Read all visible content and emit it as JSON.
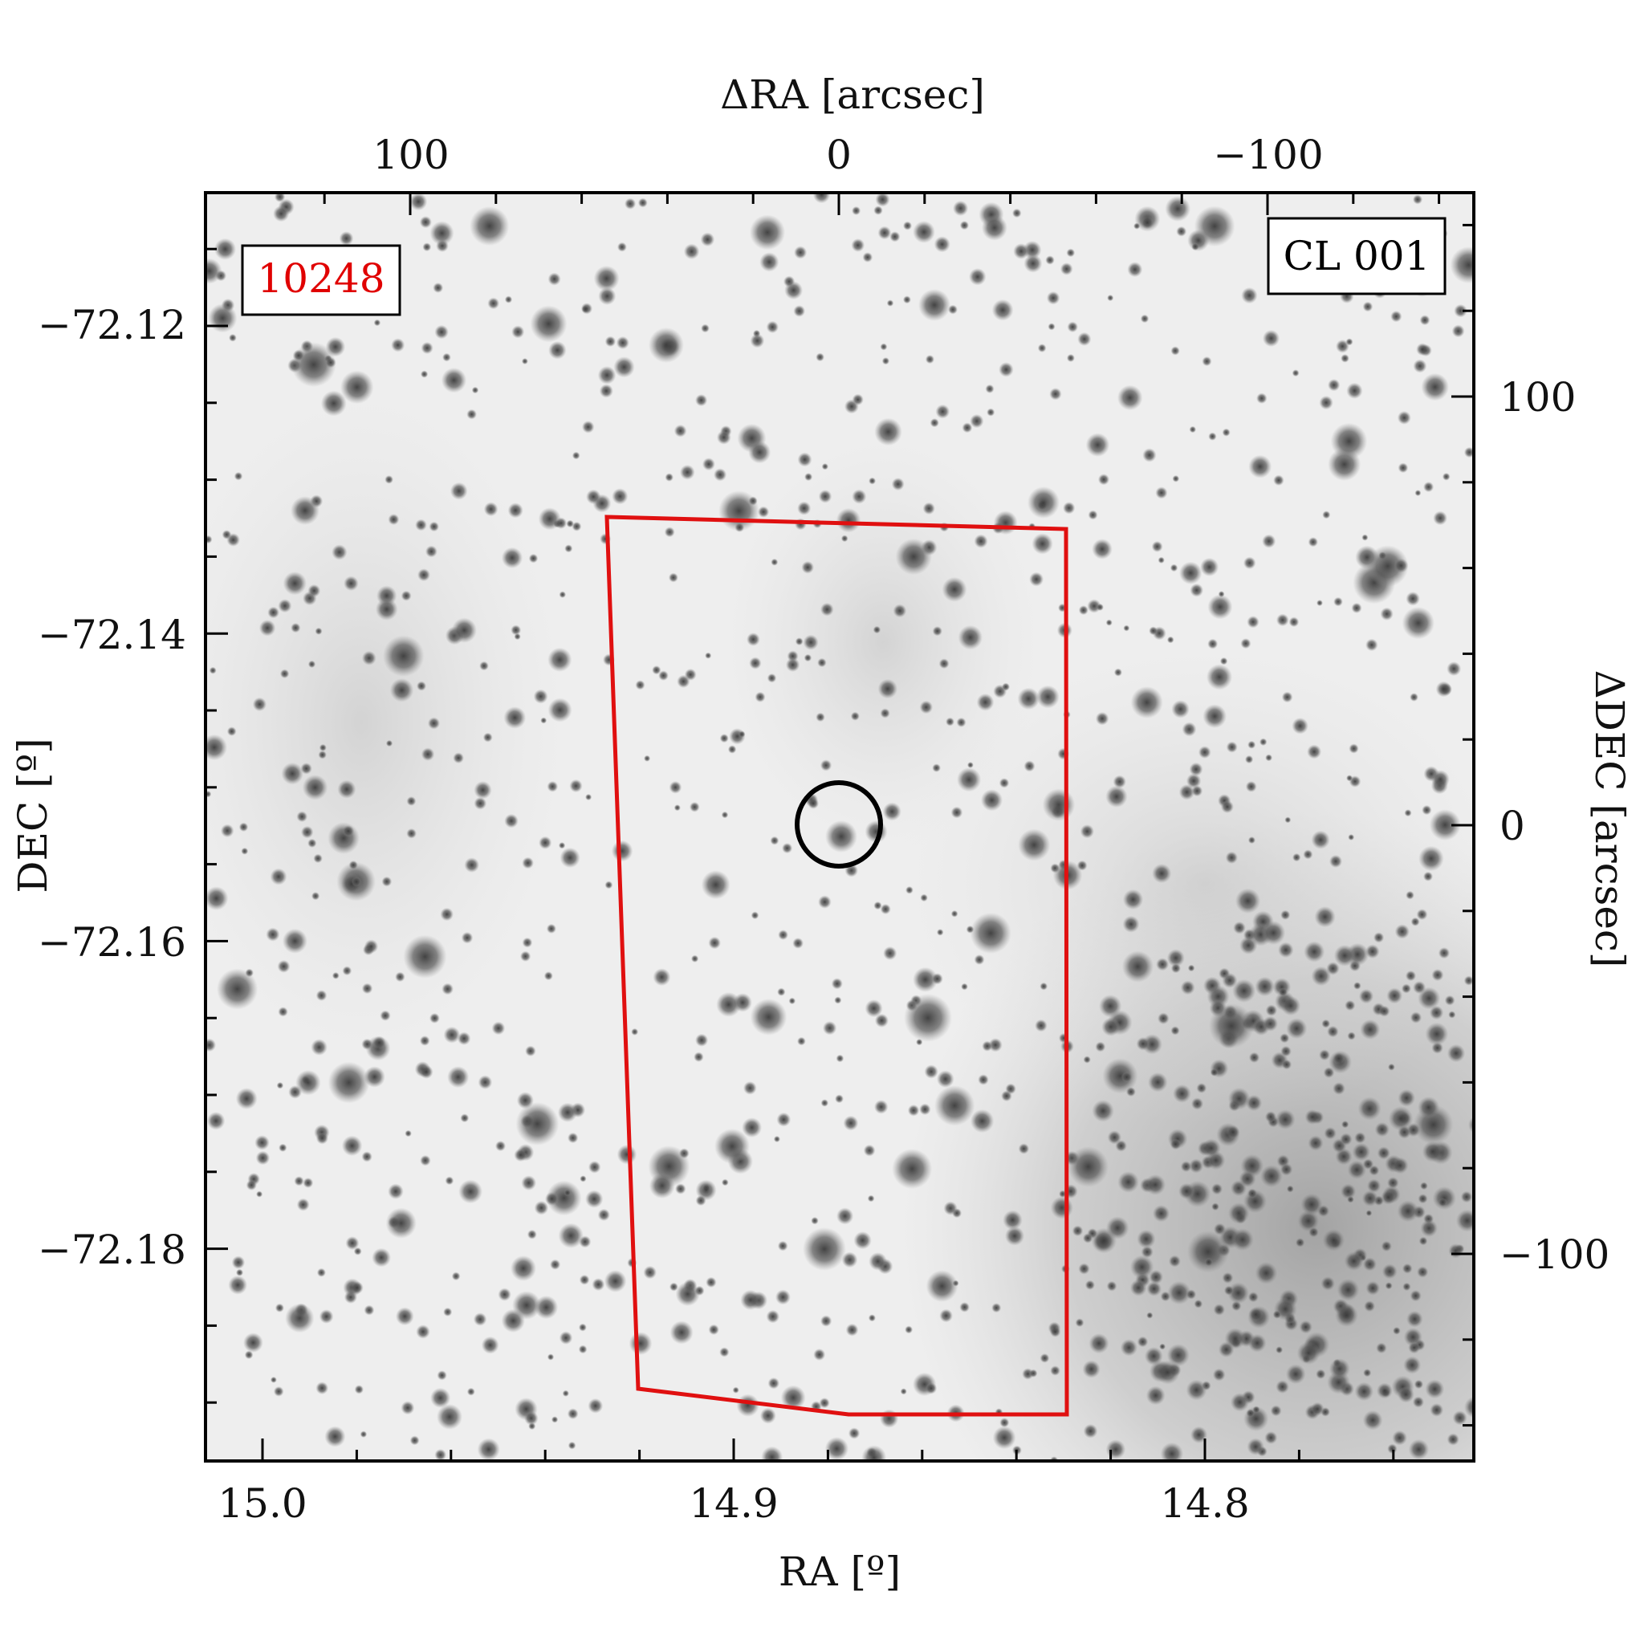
{
  "figure": {
    "top_axis_label": "ΔRA [arcsec]",
    "bottom_axis_label": "RA [º]",
    "left_axis_label": "DEC [º]",
    "right_axis_label": "ΔDEC [arcsec]",
    "field_label": "CL 001",
    "id_label": "10248",
    "id_label_color": "#e00000",
    "footprint_color": "#e01010",
    "marker_color": "#000000"
  },
  "axes": {
    "bottom_ticks": [
      "15.0",
      "14.9",
      "14.8"
    ],
    "left_ticks": [
      "−72.12",
      "−72.14",
      "−72.16",
      "−72.18"
    ],
    "top_ticks": [
      "100",
      "0",
      "−100"
    ],
    "right_ticks": [
      "100",
      "0",
      "−100"
    ]
  }
}
